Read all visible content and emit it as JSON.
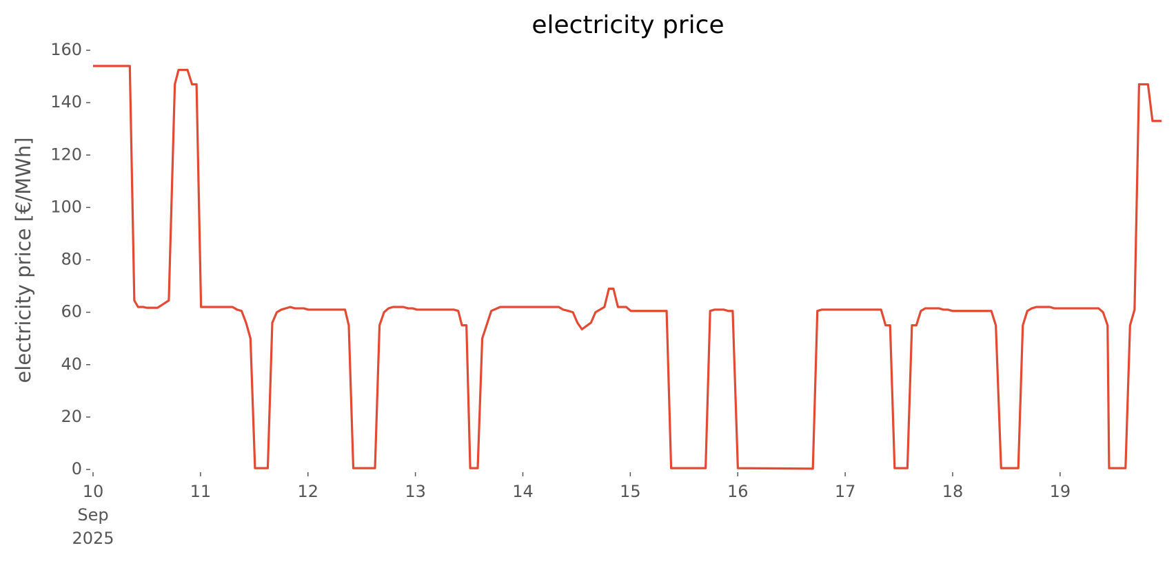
{
  "chart_data": {
    "type": "line",
    "title": "electricity price",
    "y_label": "electricity price [€/MWh]",
    "x": [
      10,
      10.342,
      10.384,
      10.419,
      10.468,
      10.502,
      10.6,
      10.649,
      10.705,
      10.761,
      10.796,
      10.879,
      10.921,
      10.963,
      11.005,
      11.298,
      11.34,
      11.382,
      11.424,
      11.465,
      11.507,
      11.626,
      11.668,
      11.71,
      11.752,
      11.835,
      11.877,
      11.961,
      12.003,
      12.345,
      12.38,
      12.422,
      12.624,
      12.666,
      12.708,
      12.75,
      12.791,
      12.889,
      12.931,
      12.973,
      13.015,
      13.357,
      13.399,
      13.433,
      13.475,
      13.51,
      13.58,
      13.622,
      13.706,
      13.789,
      14.334,
      14.375,
      14.424,
      14.466,
      14.508,
      14.55,
      14.634,
      14.676,
      14.759,
      14.801,
      14.843,
      14.885,
      14.962,
      15.004,
      15.338,
      15.38,
      15.701,
      15.743,
      15.785,
      15.869,
      15.911,
      15.953,
      16.001,
      16.699,
      16.741,
      16.783,
      17.334,
      17.376,
      17.418,
      17.46,
      17.579,
      17.621,
      17.662,
      17.704,
      17.746,
      17.872,
      17.914,
      17.955,
      17.997,
      18.36,
      18.402,
      18.451,
      18.611,
      18.653,
      18.695,
      18.737,
      18.779,
      18.904,
      18.946,
      19.358,
      19.4,
      19.442,
      19.456,
      19.609,
      19.651,
      19.693,
      19.735,
      19.818,
      19.86,
      19.944
    ],
    "series": [
      {
        "name": "electricity price",
        "color": "#e24a33",
        "values": [
          154,
          154,
          64.5,
          62,
          62,
          61.7,
          61.7,
          63,
          64.5,
          147,
          152.5,
          152.5,
          147,
          147,
          62,
          62,
          61,
          60.5,
          56,
          50,
          0.5,
          0.5,
          56,
          60,
          61,
          62,
          61.5,
          61.5,
          61,
          61,
          55,
          0.5,
          0.5,
          55,
          60,
          61.5,
          62,
          62,
          61.5,
          61.5,
          61,
          61,
          60.5,
          55,
          55,
          0.5,
          0.5,
          50,
          60.5,
          62,
          62,
          61,
          60.5,
          60,
          56,
          53.5,
          56,
          60,
          62,
          69,
          69,
          62,
          62,
          60.5,
          60.5,
          0.5,
          0.5,
          60.5,
          61,
          61,
          60.5,
          60.5,
          0.5,
          0.3,
          60.5,
          61,
          61,
          55,
          55,
          0.5,
          0.5,
          55,
          55,
          60.5,
          61.5,
          61.5,
          61,
          61,
          60.5,
          60.5,
          55,
          0.5,
          0.5,
          55,
          60.5,
          61.5,
          62,
          62,
          61.5,
          61.5,
          60,
          55,
          0.5,
          0.5,
          55,
          61,
          147,
          147,
          133,
          133
        ]
      }
    ],
    "xlim": [
      10,
      19.944
    ],
    "xticks": [
      {
        "value": 10,
        "label": "10\nSep\n2025"
      },
      11,
      12,
      13,
      14,
      15,
      16,
      17,
      18,
      19
    ],
    "ylim": [
      0,
      160
    ],
    "yticks": [
      0,
      20,
      40,
      60,
      80,
      100,
      120,
      140,
      160
    ],
    "grid": false
  }
}
